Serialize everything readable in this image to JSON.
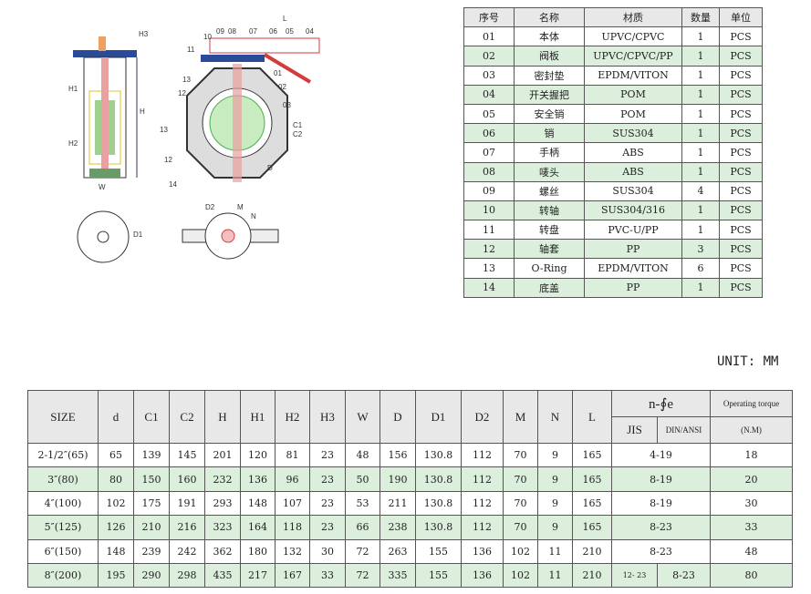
{
  "drawing": {
    "callouts": [
      "09",
      "08",
      "07",
      "06",
      "05",
      "04",
      "10",
      "11",
      "13",
      "12",
      "01",
      "02",
      "03",
      "13",
      "12",
      "14",
      "C1",
      "C2",
      "D",
      "L",
      "H",
      "H1",
      "H2",
      "H3",
      "W",
      "D1",
      "D2",
      "M",
      "N"
    ]
  },
  "parts_table": {
    "headers": [
      "序号",
      "名称",
      "材质",
      "数量",
      "单位"
    ],
    "rows": [
      [
        "01",
        "本体",
        "UPVC/CPVC",
        "1",
        "PCS"
      ],
      [
        "02",
        "阀板",
        "UPVC/CPVC/PP",
        "1",
        "PCS"
      ],
      [
        "03",
        "密封垫",
        "EPDM/VITON",
        "1",
        "PCS"
      ],
      [
        "04",
        "开关握把",
        "POM",
        "1",
        "PCS"
      ],
      [
        "05",
        "安全销",
        "POM",
        "1",
        "PCS"
      ],
      [
        "06",
        "销",
        "SUS304",
        "1",
        "PCS"
      ],
      [
        "07",
        "手柄",
        "ABS",
        "1",
        "PCS"
      ],
      [
        "08",
        "唛头",
        "ABS",
        "1",
        "PCS"
      ],
      [
        "09",
        "螺丝",
        "SUS304",
        "4",
        "PCS"
      ],
      [
        "10",
        "转轴",
        "SUS304/316",
        "1",
        "PCS"
      ],
      [
        "11",
        "转盘",
        "PVC-U/PP",
        "1",
        "PCS"
      ],
      [
        "12",
        "轴套",
        "PP",
        "3",
        "PCS"
      ],
      [
        "13",
        "O-Ring",
        "EPDM/VITON",
        "6",
        "PCS"
      ],
      [
        "14",
        "底盖",
        "PP",
        "1",
        "PCS"
      ]
    ]
  },
  "unit": "UNIT: MM",
  "spec_table": {
    "headers": [
      "SIZE",
      "d",
      "C1",
      "C2",
      "H",
      "H1",
      "H2",
      "H3",
      "W",
      "D",
      "D1",
      "D2",
      "M",
      "N",
      "L"
    ],
    "bolt_header": "n-∮e",
    "jis": "JIS",
    "din": "DIN/ANSI",
    "torque_header": "Operating torque",
    "torque_unit": "(N.M)",
    "rows": [
      {
        "cells": [
          "2-1/2″(65)",
          "65",
          "139",
          "145",
          "201",
          "120",
          "81",
          "23",
          "48",
          "156",
          "130.8",
          "112",
          "70",
          "9",
          "165"
        ],
        "bolt": "4-19",
        "torque": "18"
      },
      {
        "cells": [
          "3″(80)",
          "80",
          "150",
          "160",
          "232",
          "136",
          "96",
          "23",
          "50",
          "190",
          "130.8",
          "112",
          "70",
          "9",
          "165"
        ],
        "bolt": "8-19",
        "torque": "20"
      },
      {
        "cells": [
          "4″(100)",
          "102",
          "175",
          "191",
          "293",
          "148",
          "107",
          "23",
          "53",
          "211",
          "130.8",
          "112",
          "70",
          "9",
          "165"
        ],
        "bolt": "8-19",
        "torque": "30"
      },
      {
        "cells": [
          "5″(125)",
          "126",
          "210",
          "216",
          "323",
          "164",
          "118",
          "23",
          "66",
          "238",
          "130.8",
          "112",
          "70",
          "9",
          "165"
        ],
        "bolt": "8-23",
        "torque": "33"
      },
      {
        "cells": [
          "6″(150)",
          "148",
          "239",
          "242",
          "362",
          "180",
          "132",
          "30",
          "72",
          "263",
          "155",
          "136",
          "102",
          "11",
          "210"
        ],
        "bolt": "8-23",
        "torque": "48"
      },
      {
        "cells": [
          "8″(200)",
          "195",
          "290",
          "298",
          "435",
          "217",
          "167",
          "33",
          "72",
          "335",
          "155",
          "136",
          "102",
          "11",
          "210"
        ],
        "bolt_jis": "12- 23",
        "bolt_din": "8-23",
        "torque": "80"
      }
    ]
  },
  "colors": {
    "green_row": "#dcefdc",
    "handle": "#d23c3c",
    "disc": "#4caf50",
    "flange": "#2a4a9a"
  }
}
